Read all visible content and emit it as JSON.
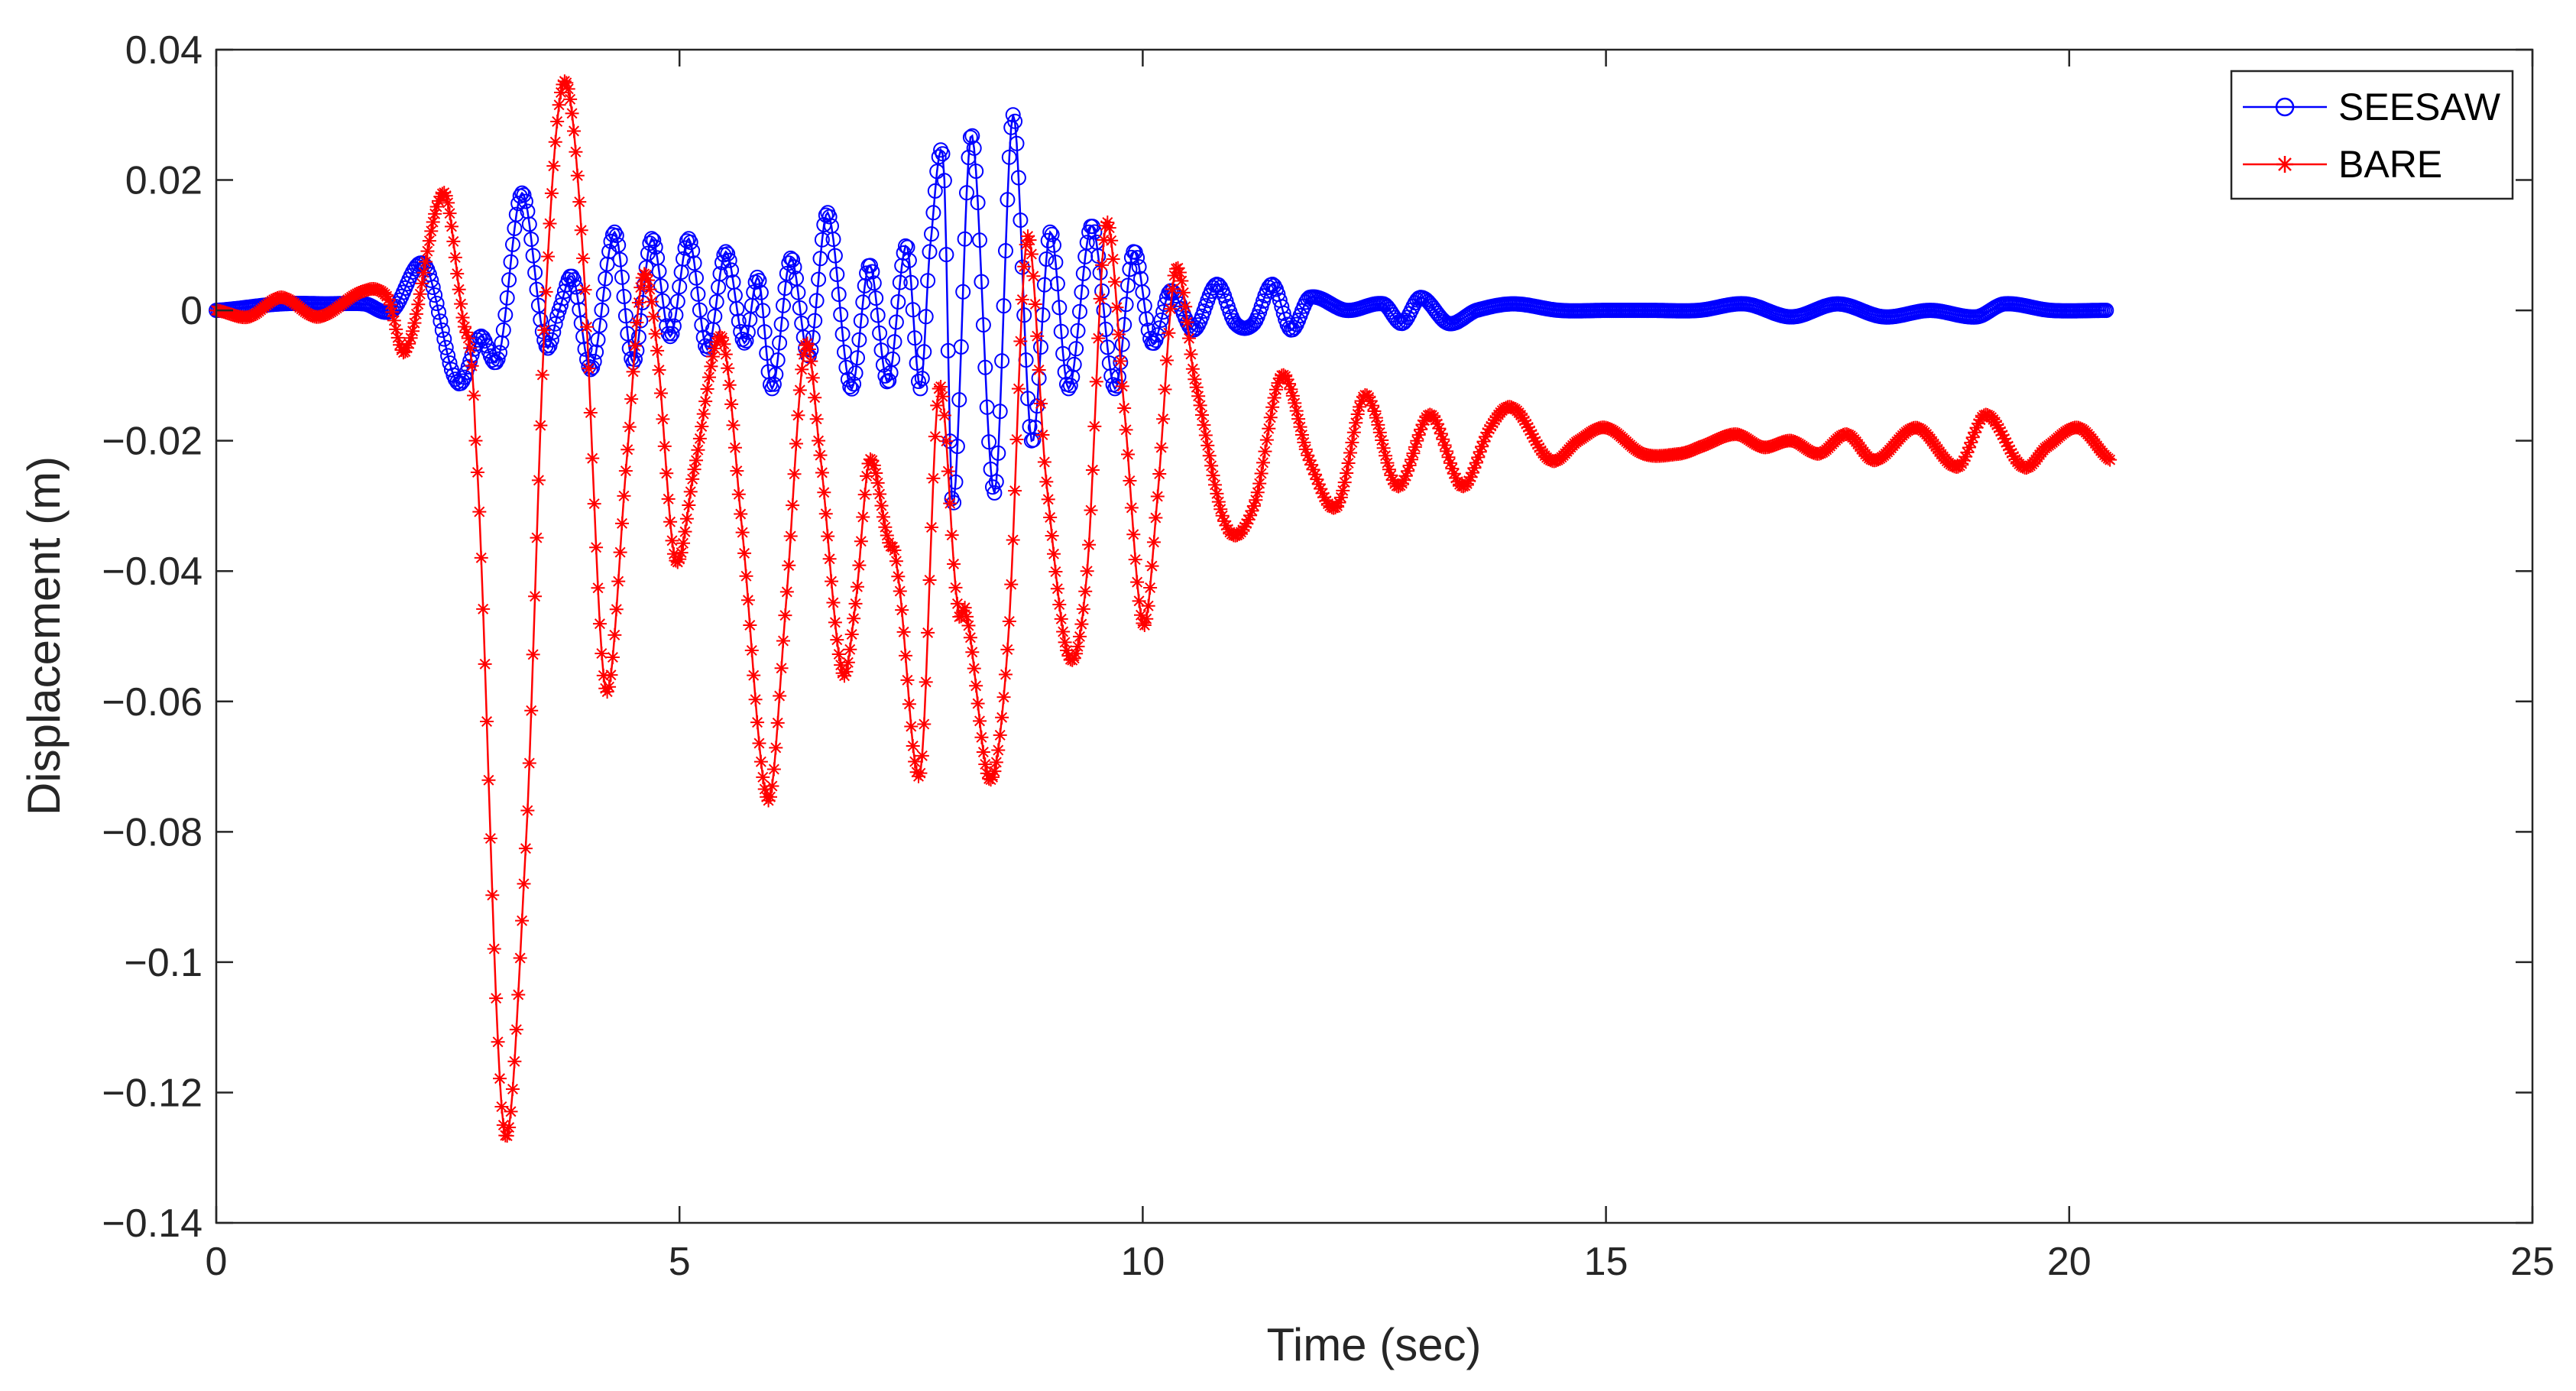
{
  "chart_data": {
    "type": "line",
    "title": "",
    "xlabel": "Time (sec)",
    "ylabel": "Displacement (m)",
    "xlim": [
      0,
      25
    ],
    "ylim": [
      -0.14,
      0.04
    ],
    "xticks": [
      0,
      5,
      10,
      15,
      20,
      25
    ],
    "xtick_labels": [
      "0",
      "5",
      "10",
      "15",
      "20",
      "25"
    ],
    "yticks": [
      0.04,
      0.02,
      0,
      -0.02,
      -0.04,
      -0.06,
      -0.08,
      -0.1,
      -0.12,
      -0.14
    ],
    "ytick_labels": [
      "0.04",
      "0.02",
      "0",
      "−0.02",
      "−0.04",
      "−0.06",
      "−0.08",
      "−0.1",
      "−0.12",
      "−0.14"
    ],
    "grid": false,
    "legend_position": "top-right",
    "series": [
      {
        "name": "SEESAW",
        "color": "#0000ff",
        "marker": "circle",
        "key_points": [
          [
            0,
            0
          ],
          [
            0.7,
            0.001
          ],
          [
            1.2,
            0.001
          ],
          [
            1.6,
            0.001
          ],
          [
            1.9,
            0.0
          ],
          [
            2.25,
            0.007
          ],
          [
            2.6,
            -0.011
          ],
          [
            2.85,
            -0.004
          ],
          [
            3.05,
            -0.007
          ],
          [
            3.3,
            0.018
          ],
          [
            3.55,
            -0.005
          ],
          [
            3.7,
            0.0
          ],
          [
            3.85,
            0.005
          ],
          [
            4.05,
            -0.009
          ],
          [
            4.3,
            0.012
          ],
          [
            4.5,
            -0.008
          ],
          [
            4.7,
            0.011
          ],
          [
            4.9,
            -0.004
          ],
          [
            5.1,
            0.011
          ],
          [
            5.3,
            -0.006
          ],
          [
            5.5,
            0.009
          ],
          [
            5.7,
            -0.005
          ],
          [
            5.85,
            0.005
          ],
          [
            6.0,
            -0.012
          ],
          [
            6.2,
            0.008
          ],
          [
            6.4,
            -0.007
          ],
          [
            6.6,
            0.015
          ],
          [
            6.85,
            -0.012
          ],
          [
            7.05,
            0.007
          ],
          [
            7.25,
            -0.011
          ],
          [
            7.45,
            0.01
          ],
          [
            7.6,
            -0.012
          ],
          [
            7.7,
            0.009
          ],
          [
            7.85,
            0.023
          ],
          [
            7.95,
            -0.03
          ],
          [
            8.15,
            0.027
          ],
          [
            8.4,
            -0.028
          ],
          [
            8.6,
            0.03
          ],
          [
            8.8,
            -0.02
          ],
          [
            9.0,
            0.012
          ],
          [
            9.2,
            -0.012
          ],
          [
            9.45,
            0.013
          ],
          [
            9.7,
            -0.012
          ],
          [
            9.9,
            0.009
          ],
          [
            10.1,
            -0.005
          ],
          [
            10.3,
            0.003
          ],
          [
            10.55,
            -0.003
          ],
          [
            10.8,
            0.004
          ],
          [
            11.0,
            -0.002
          ],
          [
            11.2,
            -0.002
          ],
          [
            11.4,
            0.004
          ],
          [
            11.6,
            -0.003
          ],
          [
            11.8,
            0.002
          ],
          [
            12.2,
            0.0
          ],
          [
            12.6,
            0.001
          ],
          [
            12.8,
            -0.002
          ],
          [
            13.0,
            0.002
          ],
          [
            13.3,
            -0.002
          ],
          [
            13.6,
            0.0
          ],
          [
            14.0,
            0.001
          ],
          [
            14.5,
            0.0
          ],
          [
            15.0,
            0.0
          ],
          [
            15.5,
            0.0
          ],
          [
            16.0,
            0.0
          ],
          [
            16.5,
            0.001
          ],
          [
            17.0,
            -0.001
          ],
          [
            17.5,
            0.001
          ],
          [
            18.0,
            -0.001
          ],
          [
            18.5,
            0.0
          ],
          [
            19.0,
            -0.001
          ],
          [
            19.3,
            0.001
          ],
          [
            19.8,
            0.0
          ],
          [
            20.4,
            0.0
          ]
        ]
      },
      {
        "name": "BARE",
        "color": "#ff0000",
        "marker": "asterisk",
        "key_points": [
          [
            0,
            0
          ],
          [
            0.35,
            -0.001
          ],
          [
            0.7,
            0.002
          ],
          [
            1.1,
            -0.001
          ],
          [
            1.6,
            0.003
          ],
          [
            1.85,
            0.002
          ],
          [
            2.05,
            -0.006
          ],
          [
            2.45,
            0.018
          ],
          [
            2.65,
            0.0
          ],
          [
            2.8,
            -0.02
          ],
          [
            3.1,
            -0.125
          ],
          [
            3.35,
            -0.08
          ],
          [
            3.55,
            0.0
          ],
          [
            3.75,
            0.035
          ],
          [
            3.95,
            0.01
          ],
          [
            4.2,
            -0.058
          ],
          [
            4.45,
            -0.02
          ],
          [
            4.6,
            0.005
          ],
          [
            4.75,
            -0.005
          ],
          [
            4.95,
            -0.038
          ],
          [
            5.15,
            -0.025
          ],
          [
            5.45,
            -0.004
          ],
          [
            5.65,
            -0.03
          ],
          [
            5.95,
            -0.075
          ],
          [
            6.15,
            -0.045
          ],
          [
            6.35,
            -0.006
          ],
          [
            6.5,
            -0.02
          ],
          [
            6.75,
            -0.055
          ],
          [
            6.9,
            -0.045
          ],
          [
            7.05,
            -0.023
          ],
          [
            7.25,
            -0.035
          ],
          [
            7.35,
            -0.04
          ],
          [
            7.6,
            -0.071
          ],
          [
            7.8,
            -0.012
          ],
          [
            8.0,
            -0.045
          ],
          [
            8.1,
            -0.047
          ],
          [
            8.35,
            -0.072
          ],
          [
            8.55,
            -0.05
          ],
          [
            8.75,
            0.011
          ],
          [
            8.95,
            -0.025
          ],
          [
            9.2,
            -0.053
          ],
          [
            9.4,
            -0.04
          ],
          [
            9.6,
            0.013
          ],
          [
            9.8,
            -0.015
          ],
          [
            10.0,
            -0.048
          ],
          [
            10.15,
            -0.03
          ],
          [
            10.35,
            0.006
          ],
          [
            10.55,
            -0.01
          ],
          [
            10.9,
            -0.033
          ],
          [
            11.2,
            -0.03
          ],
          [
            11.5,
            -0.01
          ],
          [
            11.8,
            -0.023
          ],
          [
            12.1,
            -0.03
          ],
          [
            12.4,
            -0.013
          ],
          [
            12.75,
            -0.027
          ],
          [
            13.1,
            -0.016
          ],
          [
            13.45,
            -0.027
          ],
          [
            13.75,
            -0.018
          ],
          [
            14.0,
            -0.015
          ],
          [
            14.4,
            -0.023
          ],
          [
            14.7,
            -0.02
          ],
          [
            15.0,
            -0.018
          ],
          [
            15.4,
            -0.022
          ],
          [
            15.8,
            -0.022
          ],
          [
            16.0,
            -0.021
          ],
          [
            16.4,
            -0.019
          ],
          [
            16.7,
            -0.021
          ],
          [
            17.0,
            -0.02
          ],
          [
            17.3,
            -0.022
          ],
          [
            17.6,
            -0.019
          ],
          [
            17.9,
            -0.023
          ],
          [
            18.35,
            -0.018
          ],
          [
            18.8,
            -0.024
          ],
          [
            19.1,
            -0.016
          ],
          [
            19.5,
            -0.024
          ],
          [
            19.75,
            -0.021
          ],
          [
            20.1,
            -0.018
          ],
          [
            20.45,
            -0.023
          ]
        ]
      }
    ]
  }
}
